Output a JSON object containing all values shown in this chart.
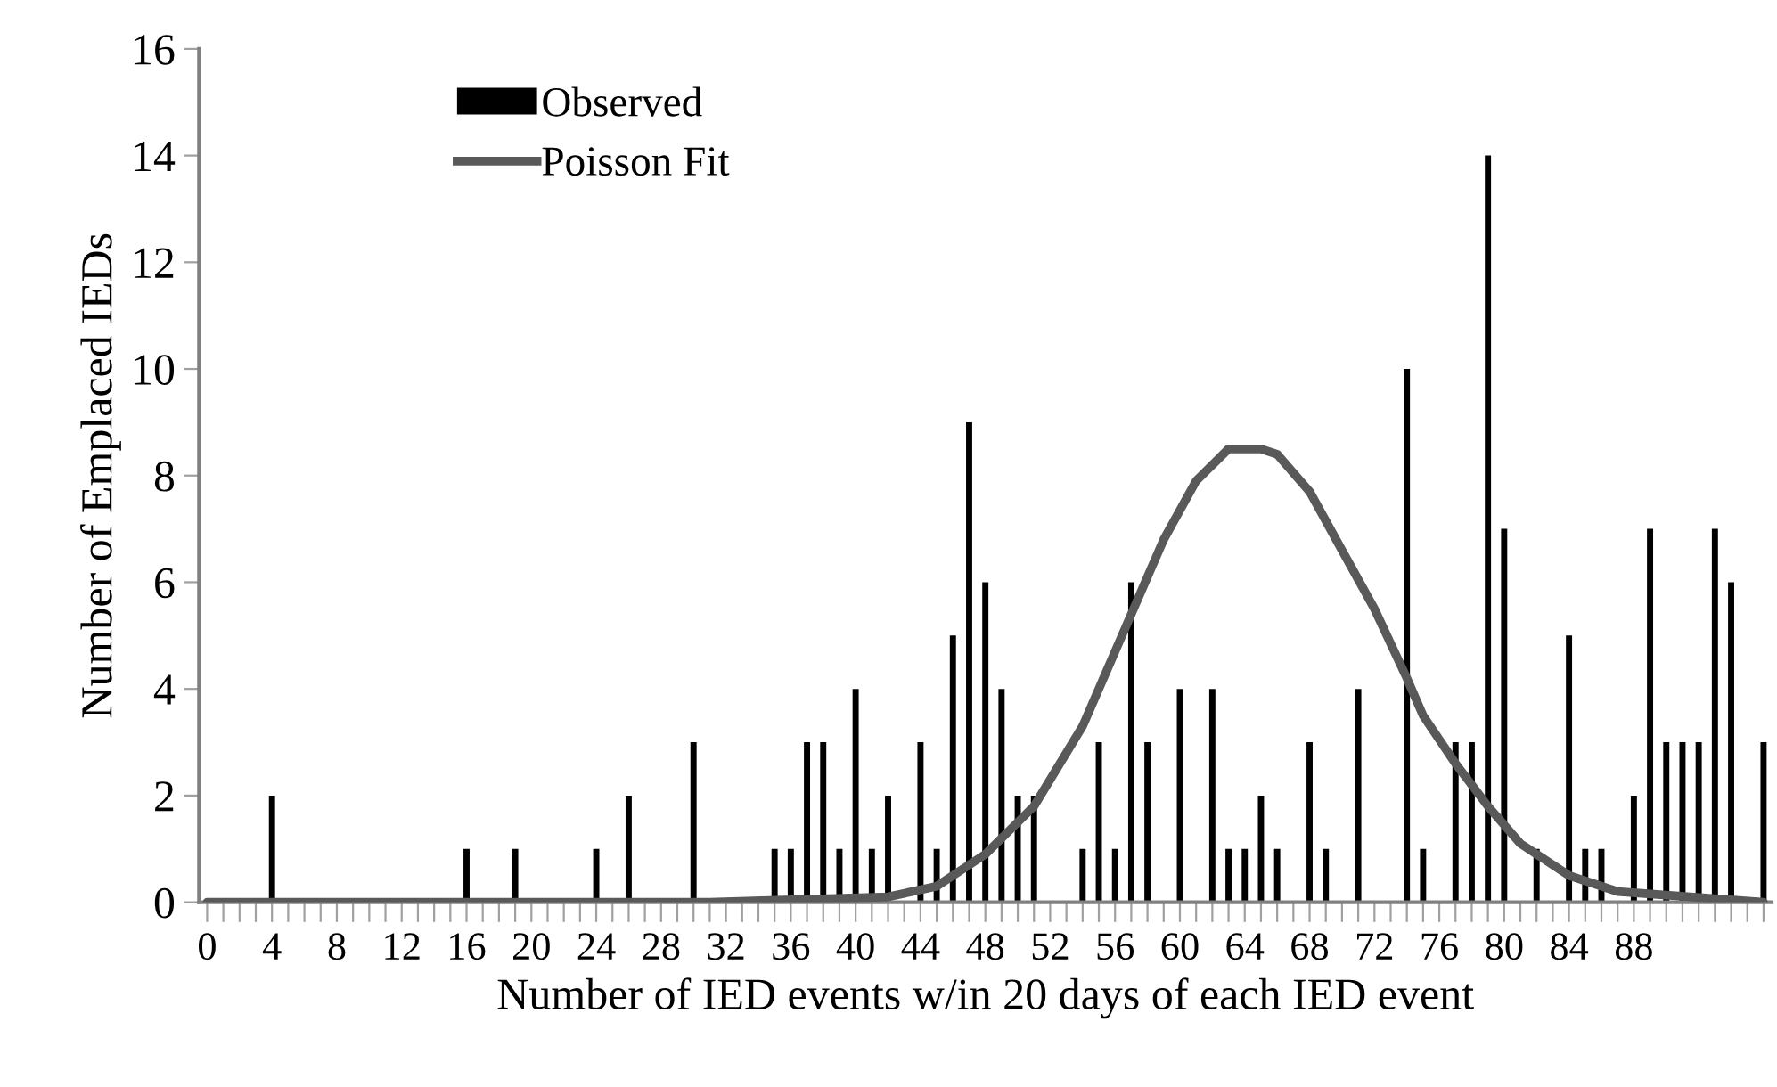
{
  "chart_data": {
    "type": "bar",
    "xlabel": "Number of IED events w/in 20 days of each IED event",
    "ylabel": "Number of Emplaced IEDs",
    "categories": [
      "0",
      null,
      null,
      null,
      "4",
      null,
      null,
      null,
      "8",
      null,
      null,
      null,
      "12",
      null,
      null,
      null,
      "16",
      null,
      null,
      null,
      "20",
      null,
      null,
      null,
      "24",
      null,
      null,
      null,
      "28",
      null,
      null,
      null,
      "32",
      null,
      null,
      null,
      "36",
      null,
      null,
      null,
      "40",
      null,
      null,
      null,
      "44",
      null,
      null,
      null,
      "48",
      null,
      null,
      null,
      "52",
      null,
      null,
      null,
      "56",
      null,
      null,
      null,
      "60",
      null,
      null,
      null,
      "64",
      null,
      null,
      null,
      "68",
      null,
      null,
      null,
      "72",
      null,
      null,
      null,
      "76",
      null,
      null,
      null,
      "80",
      null,
      null,
      null,
      "84",
      null,
      null,
      null,
      "88",
      null,
      null,
      null,
      null,
      null,
      null,
      null,
      null
    ],
    "series": [
      {
        "name": "Observed",
        "color": "#000000",
        "values": [
          0,
          0,
          0,
          0,
          2,
          0,
          0,
          0,
          0,
          0,
          0,
          0,
          0,
          0,
          0,
          0,
          1,
          0,
          0,
          1,
          0,
          0,
          0,
          0,
          1,
          0,
          2,
          0,
          0,
          0,
          3,
          0,
          0,
          0,
          0,
          1,
          1,
          3,
          3,
          1,
          4,
          1,
          2,
          0,
          3,
          1,
          5,
          9,
          6,
          4,
          2,
          2,
          0,
          0,
          1,
          3,
          1,
          6,
          3,
          0,
          4,
          0,
          4,
          1,
          1,
          2,
          1,
          0,
          3,
          1,
          0,
          4,
          0,
          0,
          10,
          1,
          0,
          3,
          3,
          14,
          7,
          0,
          1,
          0,
          5,
          1,
          1,
          0,
          2,
          7,
          3,
          3,
          3,
          7,
          6,
          0,
          3
        ]
      },
      {
        "name": "Poisson Fit",
        "type": "line",
        "color": "#595959",
        "values": [
          0,
          null,
          null,
          null,
          null,
          null,
          null,
          null,
          null,
          null,
          null,
          null,
          null,
          null,
          null,
          null,
          null,
          null,
          null,
          null,
          null,
          null,
          null,
          null,
          null,
          null,
          null,
          null,
          null,
          null,
          null,
          0,
          null,
          null,
          null,
          null,
          null,
          null,
          null,
          null,
          null,
          null,
          0.1,
          null,
          null,
          0.3,
          null,
          null,
          0.9,
          null,
          null,
          1.8,
          null,
          null,
          3.3,
          null,
          null,
          5.4,
          null,
          6.8,
          null,
          7.9,
          null,
          8.5,
          null,
          8.5,
          8.4,
          null,
          7.7,
          null,
          6.6,
          null,
          5.5,
          null,
          4.2,
          3.5,
          null,
          2.6,
          null,
          1.8,
          null,
          1.1,
          null,
          null,
          0.5,
          null,
          null,
          0.2,
          null,
          null,
          null,
          null,
          null,
          null,
          null,
          null,
          0
        ]
      }
    ],
    "ylim": [
      0,
      16
    ],
    "yticks": [
      0,
      2,
      4,
      6,
      8,
      10,
      12,
      14,
      16
    ],
    "grid": false,
    "legend": "top left",
    "marker": "none",
    "line_style": "solid"
  }
}
